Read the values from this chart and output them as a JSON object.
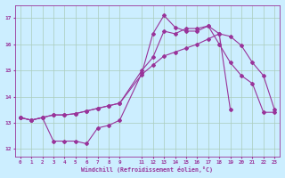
{
  "xlabel": "Windchill (Refroidissement éolien,°C)",
  "bg_color": "#cceeff",
  "grid_color": "#aaccbb",
  "line_color": "#993399",
  "xlim": [
    -0.5,
    23.5
  ],
  "ylim": [
    11.7,
    17.5
  ],
  "yticks": [
    12,
    13,
    14,
    15,
    16,
    17
  ],
  "xtick_vals": [
    0,
    1,
    2,
    3,
    4,
    5,
    6,
    7,
    8,
    9,
    11,
    12,
    13,
    14,
    15,
    16,
    17,
    18,
    19,
    20,
    21,
    22,
    23
  ],
  "xtick_labels": [
    "0",
    "1",
    "2",
    "3",
    "4",
    "5",
    "6",
    "7",
    "8",
    "9",
    "11",
    "12",
    "13",
    "14",
    "15",
    "16",
    "17",
    "18",
    "19",
    "20",
    "21",
    "22",
    "23"
  ],
  "x_top": [
    0,
    1,
    2,
    3,
    4,
    5,
    6,
    7,
    8,
    9,
    11,
    12,
    13,
    14,
    15,
    16,
    17,
    18,
    19,
    20,
    21,
    22,
    23
  ],
  "y_top": [
    13.2,
    13.1,
    13.2,
    13.3,
    13.3,
    13.35,
    13.45,
    13.55,
    13.65,
    13.75,
    15.0,
    15.5,
    16.5,
    16.4,
    16.6,
    16.6,
    16.7,
    16.4,
    13.5,
    null,
    null,
    null,
    null
  ],
  "x_mid": [
    0,
    1,
    2,
    3,
    4,
    5,
    6,
    7,
    8,
    9,
    11,
    12,
    13,
    14,
    15,
    16,
    17,
    18,
    19,
    20,
    21,
    22,
    23
  ],
  "y_mid": [
    13.2,
    13.1,
    13.2,
    13.3,
    13.3,
    13.35,
    13.45,
    13.55,
    13.65,
    13.75,
    14.85,
    15.2,
    15.55,
    15.7,
    15.85,
    16.0,
    16.2,
    16.4,
    16.3,
    15.95,
    15.3,
    14.8,
    13.5
  ],
  "x_bot": [
    0,
    1,
    2,
    3,
    4,
    5,
    6,
    7,
    8,
    9,
    11,
    12,
    13,
    14,
    15,
    16,
    17,
    18,
    19,
    20,
    21,
    22,
    23
  ],
  "y_bot": [
    13.2,
    13.1,
    13.2,
    12.3,
    12.3,
    12.3,
    12.2,
    12.8,
    12.9,
    13.1,
    14.9,
    16.4,
    17.1,
    16.65,
    16.5,
    16.5,
    16.7,
    16.0,
    15.3,
    14.8,
    14.5,
    13.4,
    13.4
  ]
}
